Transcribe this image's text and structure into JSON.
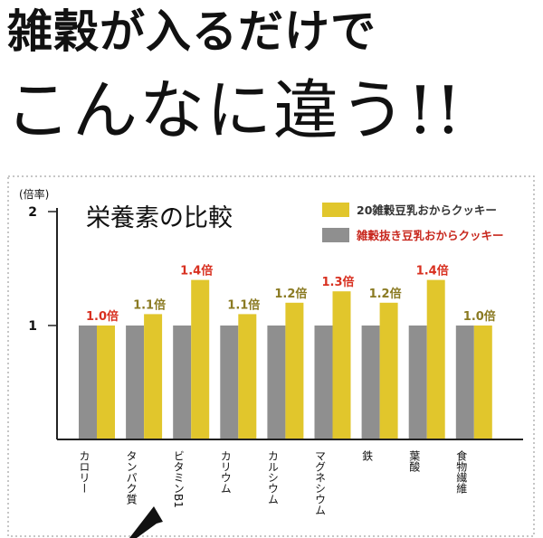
{
  "headline": {
    "line1": "雑穀が入るだけで",
    "line2": "こんなに違う!!"
  },
  "chart_data": {
    "type": "bar",
    "title": "栄養素の比較",
    "ylabel": "(倍率)",
    "ylim": [
      0,
      2
    ],
    "yticks": [
      1,
      2
    ],
    "grid": false,
    "legend_position": "top-right",
    "categories": [
      "カロリー",
      "タンパク質",
      "ビタミンB1",
      "カリウム",
      "カルシウム",
      "マグネシウム",
      "鉄",
      "葉酸",
      "食物繊維"
    ],
    "series": [
      {
        "name": "雑穀抜き豆乳おからクッキー",
        "color": "#8f8f8f",
        "values": [
          1.0,
          1.0,
          1.0,
          1.0,
          1.0,
          1.0,
          1.0,
          1.0,
          1.0
        ]
      },
      {
        "name": "20雑穀豆乳おからクッキー",
        "color": "#e1c62c",
        "values": [
          1.0,
          1.1,
          1.4,
          1.1,
          1.2,
          1.3,
          1.2,
          1.4,
          1.0
        ]
      }
    ],
    "legend_order": [
      1,
      0
    ],
    "legend_text_colors": [
      "#333333",
      "#c8281e"
    ],
    "data_labels": [
      "1.0倍",
      "1.1倍",
      "1.4倍",
      "1.1倍",
      "1.2倍",
      "1.3倍",
      "1.2倍",
      "1.4倍",
      "1.0倍"
    ],
    "data_label_colors": [
      "#d83020",
      "#8a7a22",
      "#d83020",
      "#8a7a22",
      "#8a7a22",
      "#d83020",
      "#8a7a22",
      "#d83020",
      "#8a7a22"
    ],
    "colors": {
      "frame": "#b3b3b3",
      "axis": "#222222"
    }
  }
}
